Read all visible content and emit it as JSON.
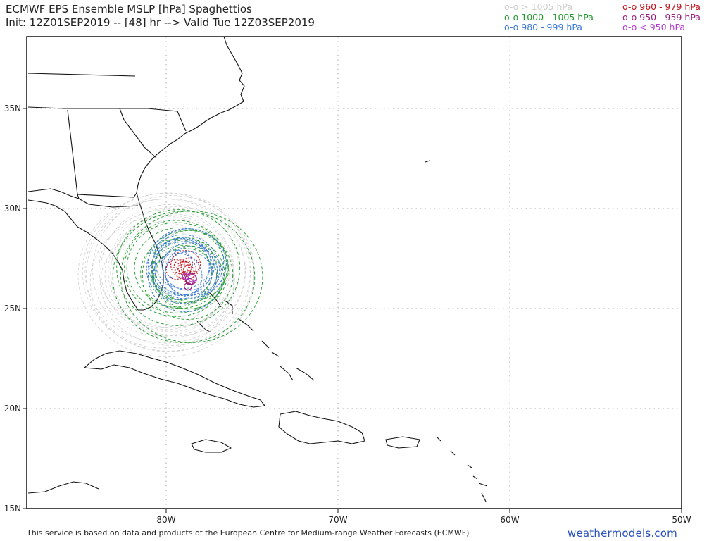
{
  "header": {
    "title_line1": "ECMWF EPS Ensemble MSLP [hPa] Spaghettios",
    "title_line2": "Init: 12Z01SEP2019 -- [48] hr --> Valid Tue 12Z03SEP2019"
  },
  "legend": {
    "left": [
      {
        "label": "o-o > 1005 hPa",
        "color": "#cfcfcf"
      },
      {
        "label": "o-o 1000 - 1005 hPa",
        "color": "#1f9a2a"
      },
      {
        "label": "o-o 980 - 999 hPa",
        "color": "#3a78d6"
      }
    ],
    "right": [
      {
        "label": "o-o 960 - 979 hPa",
        "color": "#c0141c"
      },
      {
        "label": "o-o 950 - 959 hPa",
        "color": "#9a1e7a"
      },
      {
        "label": "o-o < 950 hPa",
        "color": "#b23ad0"
      }
    ]
  },
  "axes": {
    "lat_labels": [
      "35N",
      "30N",
      "25N",
      "20N",
      "15N"
    ],
    "lon_labels": [
      "80W",
      "70W",
      "60W",
      "50W"
    ]
  },
  "footer": {
    "credit": "This service is based on data and products of the European Centre for Medium-range Weather Forecasts (ECMWF)",
    "brand": "weathermodels.com"
  }
}
